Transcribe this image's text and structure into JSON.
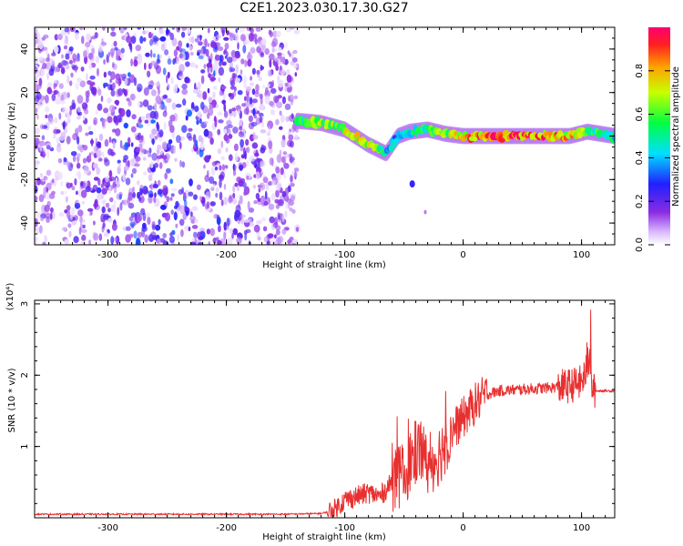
{
  "title": "C2E1.2023.030.17.30.G27",
  "colors": {
    "background": "#ffffff",
    "axis": "#000000",
    "snr_line": "#e83030",
    "spectrum_low": "#8a2be2",
    "spectrum_mid": "#00ff66",
    "spectrum_high": "#ff0040"
  },
  "chart_data": [
    {
      "type": "heatmap",
      "xlabel": "Height of straight line (km)",
      "ylabel": "Frequency (Hz)",
      "xlim": [
        -362,
        128
      ],
      "ylim": [
        -50,
        50
      ],
      "xticks": [
        -300,
        -200,
        -100,
        0,
        100
      ],
      "yticks": [
        -40,
        -20,
        0,
        20,
        40
      ],
      "colorbar": {
        "label": "Normalized spectral amplitude",
        "range": [
          0,
          1
        ],
        "ticks": [
          "0.0",
          "0.2",
          "0.4",
          "0.6",
          "0.8"
        ]
      },
      "regions": [
        {
          "kind": "noise",
          "x_range": [
            -362,
            -140
          ],
          "y_range": [
            -50,
            50
          ]
        },
        {
          "kind": "signal",
          "x_range": [
            -145,
            128
          ]
        }
      ],
      "signal_trace": [
        {
          "x": -140,
          "freq": 7,
          "amp": 0.6
        },
        {
          "x": -120,
          "freq": 6,
          "amp": 0.7
        },
        {
          "x": -100,
          "freq": 3,
          "amp": 0.7
        },
        {
          "x": -80,
          "freq": -4,
          "amp": 0.8
        },
        {
          "x": -65,
          "freq": -8,
          "amp": 0.5
        },
        {
          "x": -55,
          "freq": 0,
          "amp": 0.4
        },
        {
          "x": -45,
          "freq": 2,
          "amp": 0.5
        },
        {
          "x": -30,
          "freq": 3,
          "amp": 0.6
        },
        {
          "x": -15,
          "freq": 1,
          "amp": 0.7
        },
        {
          "x": 0,
          "freq": 0,
          "amp": 0.85
        },
        {
          "x": 30,
          "freq": 0,
          "amp": 0.95
        },
        {
          "x": 60,
          "freq": 0,
          "amp": 0.9
        },
        {
          "x": 90,
          "freq": 0,
          "amp": 0.85
        },
        {
          "x": 105,
          "freq": 2,
          "amp": 0.6
        },
        {
          "x": 128,
          "freq": 0,
          "amp": 0.5
        }
      ]
    },
    {
      "type": "line",
      "xlabel": "Height of straight line (km)",
      "ylabel": "SNR (10 * v/v)",
      "y_multiplier": "(x10⁴)",
      "xlim": [
        -362,
        128
      ],
      "ylim": [
        0,
        3.05
      ],
      "xticks": [
        -300,
        -200,
        -100,
        0,
        100
      ],
      "yticks": [
        1,
        2,
        3
      ],
      "series": [
        {
          "values": [
            [
              -362,
              0.05
            ],
            [
              -300,
              0.05
            ],
            [
              -200,
              0.05
            ],
            [
              -150,
              0.05
            ],
            [
              -120,
              0.06
            ],
            [
              -110,
              0.1
            ],
            [
              -100,
              0.25
            ],
            [
              -90,
              0.3
            ],
            [
              -80,
              0.35
            ],
            [
              -70,
              0.3
            ],
            [
              -60,
              0.5
            ],
            [
              -50,
              0.6
            ],
            [
              -40,
              0.9
            ],
            [
              -35,
              1.0
            ],
            [
              -30,
              0.7
            ],
            [
              -20,
              0.9
            ],
            [
              -10,
              1.2
            ],
            [
              0,
              1.4
            ],
            [
              10,
              1.6
            ],
            [
              20,
              1.73
            ],
            [
              30,
              1.78
            ],
            [
              50,
              1.8
            ],
            [
              70,
              1.82
            ],
            [
              90,
              1.85
            ],
            [
              100,
              1.9
            ],
            [
              105,
              2.1
            ],
            [
              110,
              1.78
            ],
            [
              128,
              1.78
            ]
          ]
        }
      ]
    }
  ]
}
